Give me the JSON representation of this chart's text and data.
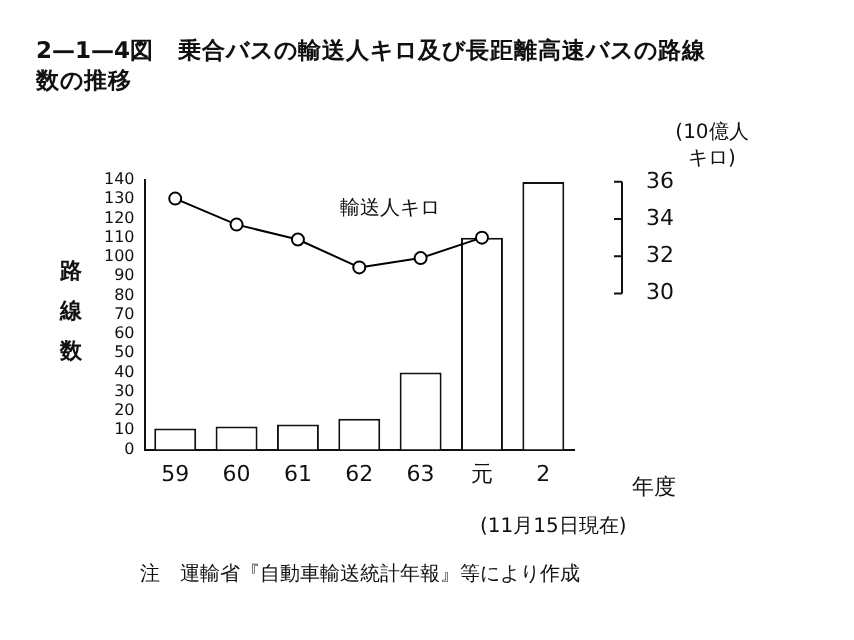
{
  "chart_data": {
    "type": "bar",
    "title": "2—1—4図　乗合バスの輸送人キロ及び長距離高速バスの路線数の推移",
    "ylabel": "路線数",
    "y2label": "(10億人キロ)",
    "xlabel": "年度",
    "categories": [
      "59",
      "60",
      "61",
      "62",
      "63",
      "元",
      "2"
    ],
    "series": [
      {
        "type": "bar",
        "color": "#ffffff",
        "values": [
          11,
          12,
          13,
          16,
          40,
          110,
          139
        ]
      },
      {
        "type": "line",
        "name": "輸送人キロ",
        "axis": "y2",
        "color": "#000000",
        "values": [
          35.1,
          33.7,
          32.9,
          31.4,
          31.9,
          33.0,
          null
        ]
      }
    ],
    "ylim": [
      0,
      140
    ],
    "yticks": [
      0,
      10,
      20,
      30,
      40,
      50,
      60,
      70,
      80,
      90,
      100,
      110,
      120,
      130,
      140
    ],
    "y2lim": [
      21.6,
      36.1
    ],
    "y2ticks": [
      30,
      32,
      34,
      36
    ],
    "marker": "circle",
    "grid": false,
    "legend": false,
    "annotations": [
      "(11月15日現在)",
      "注　運輸省『自動車輸送統計年報』等により作成"
    ]
  }
}
